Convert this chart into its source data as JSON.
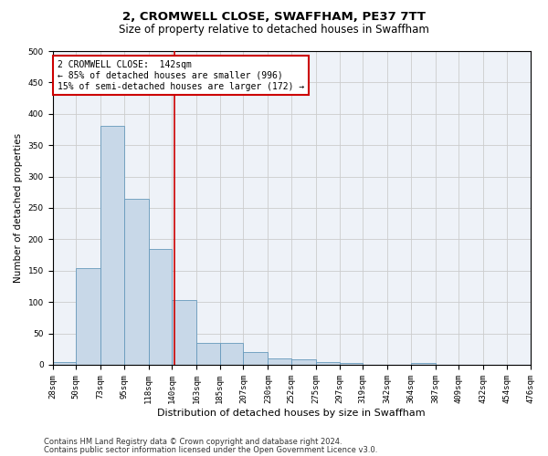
{
  "title1": "2, CROMWELL CLOSE, SWAFFHAM, PE37 7TT",
  "title2": "Size of property relative to detached houses in Swaffham",
  "xlabel": "Distribution of detached houses by size in Swaffham",
  "ylabel": "Number of detached properties",
  "bar_edges": [
    28,
    50,
    73,
    95,
    118,
    140,
    163,
    185,
    207,
    230,
    252,
    275,
    297,
    319,
    342,
    364,
    387,
    409,
    432,
    454,
    476
  ],
  "bar_heights": [
    5,
    154,
    381,
    265,
    184,
    103,
    35,
    35,
    20,
    10,
    8,
    5,
    3,
    0,
    0,
    3,
    0,
    0,
    0,
    0
  ],
  "property_size": 142,
  "vline_color": "#cc0000",
  "bar_facecolor": "#c8d8e8",
  "bar_edgecolor": "#6699bb",
  "annotation_line1": "2 CROMWELL CLOSE:  142sqm",
  "annotation_line2": "← 85% of detached houses are smaller (996)",
  "annotation_line3": "15% of semi-detached houses are larger (172) →",
  "annotation_box_edgecolor": "#cc0000",
  "ylim": [
    0,
    500
  ],
  "yticks": [
    0,
    50,
    100,
    150,
    200,
    250,
    300,
    350,
    400,
    450,
    500
  ],
  "grid_color": "#cccccc",
  "bg_color": "#eef2f8",
  "footer1": "Contains HM Land Registry data © Crown copyright and database right 2024.",
  "footer2": "Contains public sector information licensed under the Open Government Licence v3.0.",
  "title1_fontsize": 9.5,
  "title2_fontsize": 8.5,
  "xlabel_fontsize": 8,
  "ylabel_fontsize": 7.5,
  "tick_fontsize": 6.5,
  "annotation_fontsize": 7.0,
  "footer_fontsize": 6.0
}
